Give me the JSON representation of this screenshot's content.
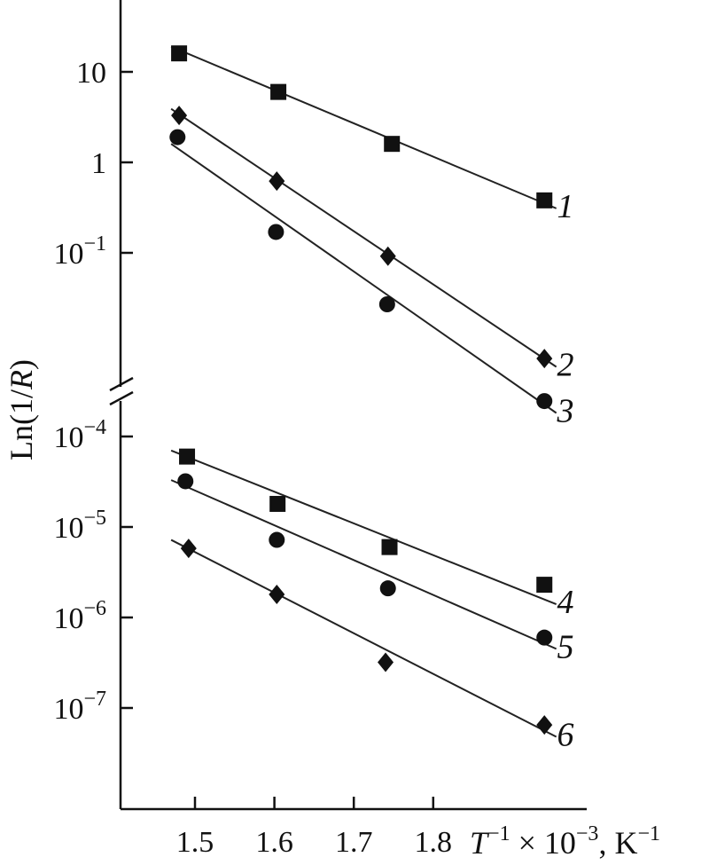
{
  "chart_data": {
    "type": "scatter",
    "title": "",
    "ylabel_parts": [
      "Ln(1/",
      "R",
      ")"
    ],
    "xlabel_parts": [
      "T",
      "−1",
      " × 10",
      "−3",
      ", K",
      "−1"
    ],
    "x_ticks": [
      "1.5",
      "1.6",
      "1.7",
      "1.8"
    ],
    "y_scale": "log",
    "y_ticks_upper": [
      {
        "value": 10,
        "base": "10",
        "exp": ""
      },
      {
        "value": 1,
        "base": "1",
        "exp": ""
      },
      {
        "value": 0.1,
        "base": "10",
        "exp": "−1"
      }
    ],
    "y_ticks_lower": [
      {
        "value": 0.0001,
        "base": "10",
        "exp": "−4"
      },
      {
        "value": 1e-05,
        "base": "10",
        "exp": "−5"
      },
      {
        "value": 1e-06,
        "base": "10",
        "exp": "−6"
      },
      {
        "value": 1e-07,
        "base": "10",
        "exp": "−7"
      }
    ],
    "series": [
      {
        "name": "1",
        "marker": "square",
        "panel": "upper",
        "points": [
          [
            1.48,
            16
          ],
          [
            1.605,
            6
          ],
          [
            1.748,
            1.6
          ],
          [
            1.94,
            0.38
          ]
        ],
        "fit": [
          [
            1.47,
            19
          ],
          [
            1.955,
            0.31
          ]
        ]
      },
      {
        "name": "2",
        "marker": "diamond",
        "panel": "upper",
        "points": [
          [
            1.48,
            3.3
          ],
          [
            1.603,
            0.62
          ],
          [
            1.743,
            0.092
          ],
          [
            1.94,
            0.0068
          ]
        ],
        "fit": [
          [
            1.47,
            3.9
          ],
          [
            1.955,
            0.0055
          ]
        ]
      },
      {
        "name": "3",
        "marker": "circle",
        "panel": "upper",
        "points": [
          [
            1.478,
            1.9
          ],
          [
            1.602,
            0.17
          ],
          [
            1.742,
            0.027
          ],
          [
            1.94,
            0.0023
          ]
        ],
        "fit": [
          [
            1.47,
            1.6
          ],
          [
            1.955,
            0.0017
          ]
        ]
      },
      {
        "name": "4",
        "marker": "square",
        "panel": "lower",
        "points": [
          [
            1.49,
            6e-05
          ],
          [
            1.604,
            1.8e-05
          ],
          [
            1.745,
            6e-06
          ],
          [
            1.94,
            2.3e-06
          ]
        ],
        "fit": [
          [
            1.47,
            7e-05
          ],
          [
            1.955,
            1.4e-06
          ]
        ]
      },
      {
        "name": "5",
        "marker": "circle",
        "panel": "lower",
        "points": [
          [
            1.488,
            3.2e-05
          ],
          [
            1.603,
            7.2e-06
          ],
          [
            1.743,
            2.1e-06
          ],
          [
            1.94,
            6e-07
          ]
        ],
        "fit": [
          [
            1.47,
            3.3e-05
          ],
          [
            1.955,
            4.5e-07
          ]
        ]
      },
      {
        "name": "6",
        "marker": "diamond",
        "panel": "lower",
        "points": [
          [
            1.492,
            5.8e-06
          ],
          [
            1.603,
            1.8e-06
          ],
          [
            1.74,
            3.2e-07
          ],
          [
            1.94,
            6.5e-08
          ]
        ],
        "fit": [
          [
            1.47,
            7.2e-06
          ],
          [
            1.955,
            4.8e-08
          ]
        ]
      }
    ]
  }
}
